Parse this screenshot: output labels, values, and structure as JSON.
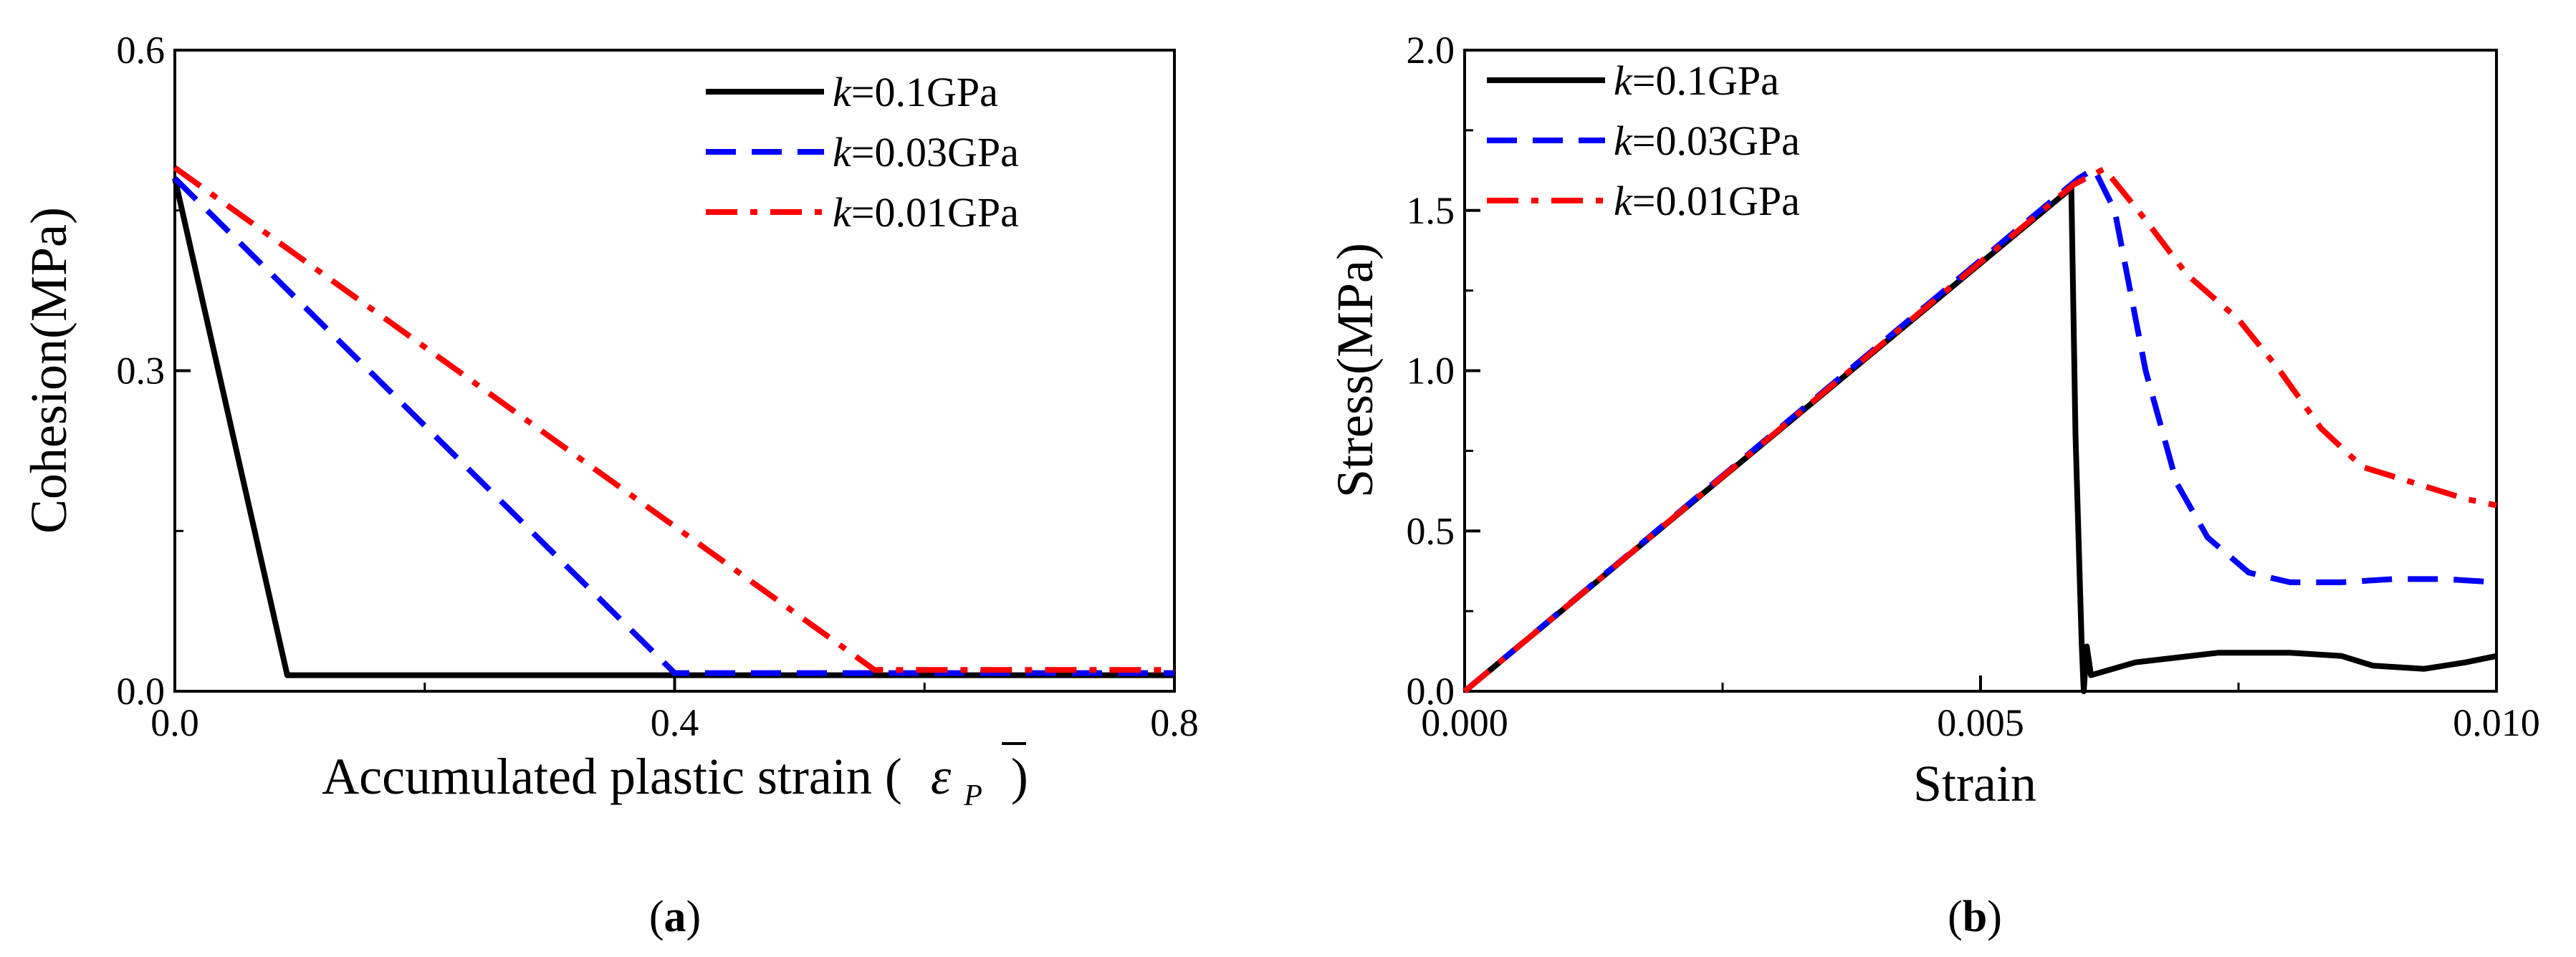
{
  "chart_data": [
    {
      "type": "line",
      "panel_label": {
        "open": "(",
        "letter": "a",
        "close": ")"
      },
      "xlabel": "Accumulated plastic strain (",
      "xlabel_symbol": "ε",
      "xlabel_subscript": "P",
      "xlabel_close": ")",
      "ylabel": "Cohesion(MPa)",
      "xlim": [
        0.0,
        0.8
      ],
      "ylim": [
        0.0,
        0.6
      ],
      "xticks": [
        0.0,
        0.4,
        0.8
      ],
      "xtick_labels": [
        "0.0",
        "0.4",
        "0.8"
      ],
      "yticks": [
        0.0,
        0.3,
        0.6
      ],
      "ytick_labels": [
        "0.0",
        "0.3",
        "0.6"
      ],
      "legend_position": "top-right",
      "series": [
        {
          "name": "k=0.1GPa",
          "italic": "k",
          "rest": "=0.1GPa",
          "color": "#000000",
          "style": "solid",
          "x": [
            0.0,
            0.09,
            0.8
          ],
          "y": [
            0.48,
            0.015,
            0.015
          ]
        },
        {
          "name": "k=0.03GPa",
          "italic": "k",
          "rest": "=0.03GPa",
          "color": "#0000ff",
          "style": "dash",
          "x": [
            0.0,
            0.4,
            0.8
          ],
          "y": [
            0.48,
            0.017,
            0.017
          ]
        },
        {
          "name": "k=0.01GPa",
          "italic": "k",
          "rest": "=0.01GPa",
          "color": "#ff0000",
          "style": "dashdot",
          "x": [
            0.0,
            0.56,
            0.8
          ],
          "y": [
            0.49,
            0.02,
            0.02
          ]
        }
      ]
    },
    {
      "type": "line",
      "panel_label": {
        "open": "(",
        "letter": "b",
        "close": ")"
      },
      "xlabel": "Strain",
      "ylabel": "Stress(MPa)",
      "xlim": [
        0.0,
        0.01
      ],
      "ylim": [
        0.0,
        2.0
      ],
      "xticks": [
        0.0,
        0.005,
        0.01
      ],
      "xtick_labels": [
        "0.000",
        "0.005",
        "0.010"
      ],
      "yticks": [
        0.0,
        0.5,
        1.0,
        1.5,
        2.0
      ],
      "ytick_labels": [
        "0.0",
        "0.5",
        "1.0",
        "1.5",
        "2.0"
      ],
      "legend_position": "top-left",
      "series": [
        {
          "name": "k=0.1GPa",
          "italic": "k",
          "rest": "=0.1GPa",
          "color": "#000000",
          "style": "solid",
          "x": [
            0.0,
            0.00588,
            0.00592,
            0.00598,
            0.006,
            0.00603,
            0.00607,
            0.0065,
            0.0073,
            0.008,
            0.0085,
            0.0088,
            0.0093,
            0.0097,
            0.01
          ],
          "y": [
            0.0,
            1.57,
            0.8,
            0.15,
            0.0,
            0.14,
            0.05,
            0.09,
            0.12,
            0.12,
            0.11,
            0.08,
            0.07,
            0.09,
            0.11
          ]
        },
        {
          "name": "k=0.03GPa",
          "italic": "k",
          "rest": "=0.03GPa",
          "color": "#0000ff",
          "style": "dash",
          "x": [
            0.0,
            0.00595,
            0.0061,
            0.0063,
            0.0066,
            0.0069,
            0.0072,
            0.0076,
            0.008,
            0.0085,
            0.009,
            0.0095,
            0.01
          ],
          "y": [
            0.0,
            1.6,
            1.63,
            1.5,
            1.0,
            0.65,
            0.48,
            0.37,
            0.34,
            0.34,
            0.35,
            0.35,
            0.34
          ]
        },
        {
          "name": "k=0.01GPa",
          "italic": "k",
          "rest": "=0.01GPa",
          "color": "#ff0000",
          "style": "dashdot",
          "x": [
            0.0,
            0.0059,
            0.0062,
            0.0066,
            0.007,
            0.0075,
            0.0079,
            0.0083,
            0.0087,
            0.0092,
            0.0097,
            0.01
          ],
          "y": [
            0.0,
            1.58,
            1.63,
            1.47,
            1.3,
            1.16,
            1.0,
            0.82,
            0.7,
            0.65,
            0.6,
            0.58
          ]
        }
      ]
    }
  ]
}
